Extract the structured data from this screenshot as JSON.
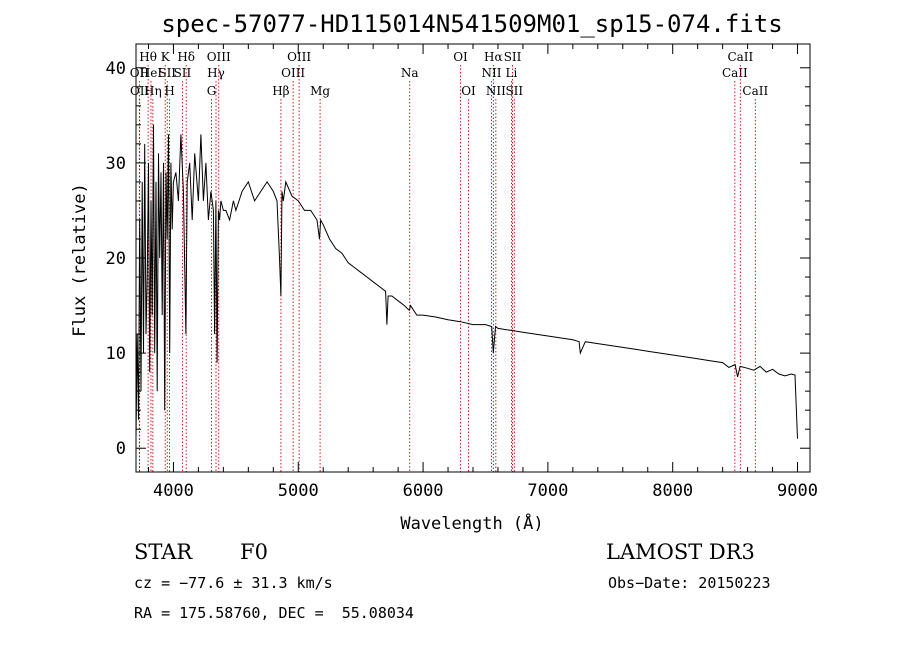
{
  "chart_data": {
    "type": "line",
    "title": "spec-57077-HD115014N541509M01_sp15-074.fits",
    "xlabel": "Wavelength (Å)",
    "ylabel": "Flux (relative)",
    "xlim": [
      3700,
      9100
    ],
    "ylim": [
      -2.5,
      42.5
    ],
    "xticks": [
      4000,
      5000,
      6000,
      7000,
      8000,
      9000
    ],
    "yticks": [
      0,
      10,
      20,
      30,
      40
    ],
    "grid": false,
    "series": [
      {
        "name": "flux",
        "x": [
          3700,
          3710,
          3720,
          3730,
          3740,
          3750,
          3760,
          3770,
          3780,
          3790,
          3800,
          3810,
          3820,
          3830,
          3840,
          3850,
          3860,
          3870,
          3880,
          3890,
          3900,
          3910,
          3920,
          3930,
          3940,
          3950,
          3960,
          3970,
          3980,
          3990,
          4000,
          4020,
          4040,
          4060,
          4080,
          4100,
          4110,
          4130,
          4150,
          4170,
          4200,
          4220,
          4240,
          4260,
          4280,
          4300,
          4320,
          4330,
          4340,
          4350,
          4360,
          4370,
          4380,
          4400,
          4420,
          4450,
          4480,
          4500,
          4550,
          4600,
          4650,
          4700,
          4750,
          4800,
          4830,
          4850,
          4861,
          4870,
          4880,
          4900,
          4950,
          5000,
          5050,
          5100,
          5150,
          5170,
          5180,
          5200,
          5250,
          5300,
          5350,
          5400,
          5450,
          5500,
          5550,
          5600,
          5650,
          5700,
          5710,
          5720,
          5750,
          5800,
          5850,
          5890,
          5900,
          5950,
          6000,
          6100,
          6200,
          6300,
          6400,
          6500,
          6550,
          6563,
          6580,
          6600,
          6700,
          6800,
          6900,
          7000,
          7100,
          7200,
          7250,
          7260,
          7300,
          7400,
          7500,
          7600,
          7700,
          7800,
          7900,
          8000,
          8100,
          8200,
          8300,
          8400,
          8450,
          8500,
          8520,
          8540,
          8600,
          8650,
          8700,
          8750,
          8800,
          8850,
          8900,
          8950,
          8980,
          9000
        ],
        "values": [
          1,
          12,
          3,
          24,
          6,
          28,
          10,
          32,
          12,
          18,
          30,
          8,
          26,
          14,
          34,
          10,
          28,
          6,
          31,
          20,
          29,
          14,
          30,
          4,
          29,
          22,
          33,
          10,
          30,
          23,
          28,
          29,
          26,
          33,
          27,
          12,
          28,
          30,
          24,
          31,
          26,
          33,
          26,
          30,
          24,
          27,
          25,
          12,
          26,
          9,
          25,
          24,
          26,
          25,
          25,
          24,
          26,
          25,
          27,
          28,
          26,
          27,
          28,
          27,
          26,
          20,
          16,
          27,
          26,
          28,
          26.5,
          26,
          25,
          25,
          24,
          22,
          24,
          23.5,
          22,
          21,
          20.5,
          19.5,
          19,
          18.5,
          18,
          17.5,
          17,
          16.5,
          13,
          16,
          16,
          15.5,
          15,
          14.5,
          15,
          14,
          14,
          13.8,
          13.5,
          13.3,
          13,
          13,
          12.8,
          10,
          12.8,
          12.6,
          12.4,
          12.2,
          12,
          11.8,
          11.6,
          11.4,
          11.2,
          10,
          11.2,
          11,
          10.8,
          10.6,
          10.4,
          10.2,
          10,
          9.8,
          9.6,
          9.4,
          9.2,
          9,
          8.5,
          8.8,
          7.5,
          8.6,
          8.4,
          8.2,
          8.6,
          8,
          8.3,
          7.8,
          7.6,
          7.8,
          7.7,
          1
        ]
      }
    ],
    "line_markers": [
      {
        "label": "OII",
        "x": 3727,
        "row": 2
      },
      {
        "label": "OII",
        "x": 3729,
        "row": 3
      },
      {
        "label": "Hθ",
        "x": 3797,
        "row": 1
      },
      {
        "label": "HeI",
        "x": 3820,
        "row": 2
      },
      {
        "label": "Hη",
        "x": 3835,
        "row": 3
      },
      {
        "label": "K",
        "x": 3934,
        "row": 1
      },
      {
        "label": "SII",
        "x": 3950,
        "row": 2
      },
      {
        "label": "H",
        "x": 3969,
        "row": 3
      },
      {
        "label": "Hδ",
        "x": 4102,
        "row": 1
      },
      {
        "label": "SII",
        "x": 4072,
        "row": 2
      },
      {
        "label": "OIII",
        "x": 4363,
        "row": 1
      },
      {
        "label": "Hγ",
        "x": 4341,
        "row": 2
      },
      {
        "label": "G",
        "x": 4305,
        "row": 3
      },
      {
        "label": "Hβ",
        "x": 4861,
        "row": 3
      },
      {
        "label": "OIII",
        "x": 4959,
        "row": 2
      },
      {
        "label": "OIII",
        "x": 5007,
        "row": 1
      },
      {
        "label": "Mg",
        "x": 5175,
        "row": 3
      },
      {
        "label": "Na",
        "x": 5893,
        "row": 2
      },
      {
        "label": "OI",
        "x": 6300,
        "row": 1
      },
      {
        "label": "OI",
        "x": 6364,
        "row": 3
      },
      {
        "label": "Hα",
        "x": 6563,
        "row": 1
      },
      {
        "label": "NII",
        "x": 6548,
        "row": 2
      },
      {
        "label": "NII",
        "x": 6583,
        "row": 3
      },
      {
        "label": "SII",
        "x": 6717,
        "row": 1
      },
      {
        "label": "Li",
        "x": 6708,
        "row": 2
      },
      {
        "label": "SII",
        "x": 6731,
        "row": 3
      },
      {
        "label": "CaII",
        "x": 8498,
        "row": 2
      },
      {
        "label": "CaII",
        "x": 8542,
        "row": 1
      },
      {
        "label": "CaII",
        "x": 8662,
        "row": 3
      }
    ]
  },
  "info": {
    "class_label": "STAR",
    "subclass": "F0",
    "survey": "LAMOST DR3",
    "velocity_line": "cz = −77.6 ± 31.3 km/s",
    "obs_date_line": "Obs−Date: 20150223",
    "coords_line": "RA = 175.58760, DEC =  55.08034"
  }
}
